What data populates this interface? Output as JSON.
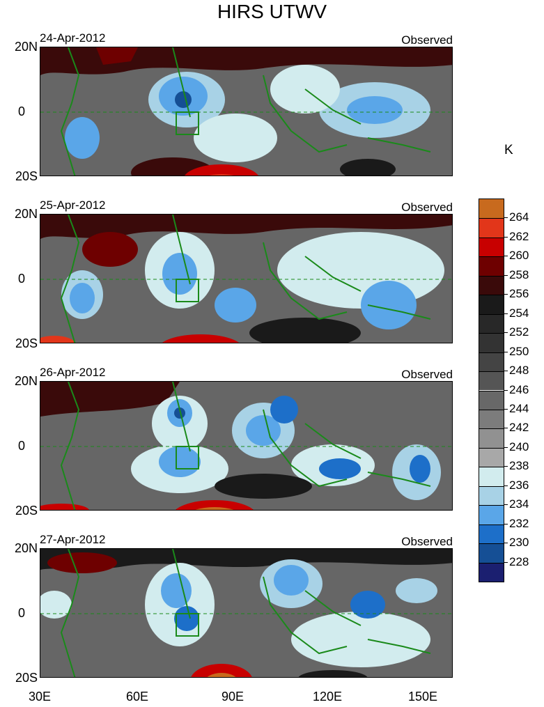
{
  "title": "HIRS UTWV",
  "panels": [
    {
      "date": "24-Apr-2012",
      "label": "Observed"
    },
    {
      "date": "25-Apr-2012",
      "label": "Observed"
    },
    {
      "date": "26-Apr-2012",
      "label": "Observed"
    },
    {
      "date": "27-Apr-2012",
      "label": "Observed"
    }
  ],
  "lat_labels": [
    "20N",
    "0",
    "20S"
  ],
  "lon_labels": [
    "30E",
    "60E",
    "90E",
    "120E",
    "150E"
  ],
  "colorbar": {
    "unit": "K",
    "labels": [
      "264",
      "262",
      "260",
      "258",
      "256",
      "254",
      "252",
      "250",
      "248",
      "246",
      "244",
      "242",
      "240",
      "238",
      "236",
      "234",
      "232",
      "230",
      "228"
    ],
    "colors": [
      "#c86a1e",
      "#e2361a",
      "#c80000",
      "#6e0000",
      "#3a0a0a",
      "#1a1a1a",
      "#282828",
      "#333333",
      "#444444",
      "#555555",
      "#686868",
      "#7c7c7c",
      "#919191",
      "#a8a8a8",
      "#d2ecee",
      "#a8d2e6",
      "#5aa6e8",
      "#1d6fc9",
      "#154f95",
      "#1b1f70"
    ]
  }
}
